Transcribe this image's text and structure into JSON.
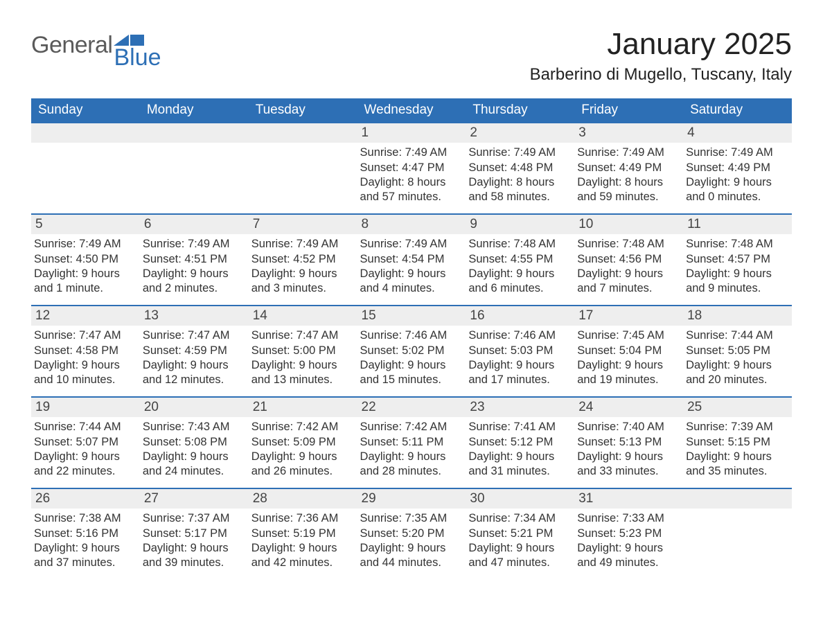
{
  "brand": {
    "general": "General",
    "blue": "Blue",
    "flag_color": "#2d6fb5"
  },
  "title": "January 2025",
  "location": "Barberino di Mugello, Tuscany, Italy",
  "colors": {
    "header_bg": "#2d6fb5",
    "header_text": "#ffffff",
    "day_bar_bg": "#eeeeee",
    "day_bar_border": "#2d6fb5",
    "body_text": "#333333",
    "page_bg": "#ffffff"
  },
  "day_headers": [
    "Sunday",
    "Monday",
    "Tuesday",
    "Wednesday",
    "Thursday",
    "Friday",
    "Saturday"
  ],
  "weeks": [
    [
      null,
      null,
      null,
      {
        "n": "1",
        "sunrise": "Sunrise: 7:49 AM",
        "sunset": "Sunset: 4:47 PM",
        "daylight": "Daylight: 8 hours and 57 minutes."
      },
      {
        "n": "2",
        "sunrise": "Sunrise: 7:49 AM",
        "sunset": "Sunset: 4:48 PM",
        "daylight": "Daylight: 8 hours and 58 minutes."
      },
      {
        "n": "3",
        "sunrise": "Sunrise: 7:49 AM",
        "sunset": "Sunset: 4:49 PM",
        "daylight": "Daylight: 8 hours and 59 minutes."
      },
      {
        "n": "4",
        "sunrise": "Sunrise: 7:49 AM",
        "sunset": "Sunset: 4:49 PM",
        "daylight": "Daylight: 9 hours and 0 minutes."
      }
    ],
    [
      {
        "n": "5",
        "sunrise": "Sunrise: 7:49 AM",
        "sunset": "Sunset: 4:50 PM",
        "daylight": "Daylight: 9 hours and 1 minute."
      },
      {
        "n": "6",
        "sunrise": "Sunrise: 7:49 AM",
        "sunset": "Sunset: 4:51 PM",
        "daylight": "Daylight: 9 hours and 2 minutes."
      },
      {
        "n": "7",
        "sunrise": "Sunrise: 7:49 AM",
        "sunset": "Sunset: 4:52 PM",
        "daylight": "Daylight: 9 hours and 3 minutes."
      },
      {
        "n": "8",
        "sunrise": "Sunrise: 7:49 AM",
        "sunset": "Sunset: 4:54 PM",
        "daylight": "Daylight: 9 hours and 4 minutes."
      },
      {
        "n": "9",
        "sunrise": "Sunrise: 7:48 AM",
        "sunset": "Sunset: 4:55 PM",
        "daylight": "Daylight: 9 hours and 6 minutes."
      },
      {
        "n": "10",
        "sunrise": "Sunrise: 7:48 AM",
        "sunset": "Sunset: 4:56 PM",
        "daylight": "Daylight: 9 hours and 7 minutes."
      },
      {
        "n": "11",
        "sunrise": "Sunrise: 7:48 AM",
        "sunset": "Sunset: 4:57 PM",
        "daylight": "Daylight: 9 hours and 9 minutes."
      }
    ],
    [
      {
        "n": "12",
        "sunrise": "Sunrise: 7:47 AM",
        "sunset": "Sunset: 4:58 PM",
        "daylight": "Daylight: 9 hours and 10 minutes."
      },
      {
        "n": "13",
        "sunrise": "Sunrise: 7:47 AM",
        "sunset": "Sunset: 4:59 PM",
        "daylight": "Daylight: 9 hours and 12 minutes."
      },
      {
        "n": "14",
        "sunrise": "Sunrise: 7:47 AM",
        "sunset": "Sunset: 5:00 PM",
        "daylight": "Daylight: 9 hours and 13 minutes."
      },
      {
        "n": "15",
        "sunrise": "Sunrise: 7:46 AM",
        "sunset": "Sunset: 5:02 PM",
        "daylight": "Daylight: 9 hours and 15 minutes."
      },
      {
        "n": "16",
        "sunrise": "Sunrise: 7:46 AM",
        "sunset": "Sunset: 5:03 PM",
        "daylight": "Daylight: 9 hours and 17 minutes."
      },
      {
        "n": "17",
        "sunrise": "Sunrise: 7:45 AM",
        "sunset": "Sunset: 5:04 PM",
        "daylight": "Daylight: 9 hours and 19 minutes."
      },
      {
        "n": "18",
        "sunrise": "Sunrise: 7:44 AM",
        "sunset": "Sunset: 5:05 PM",
        "daylight": "Daylight: 9 hours and 20 minutes."
      }
    ],
    [
      {
        "n": "19",
        "sunrise": "Sunrise: 7:44 AM",
        "sunset": "Sunset: 5:07 PM",
        "daylight": "Daylight: 9 hours and 22 minutes."
      },
      {
        "n": "20",
        "sunrise": "Sunrise: 7:43 AM",
        "sunset": "Sunset: 5:08 PM",
        "daylight": "Daylight: 9 hours and 24 minutes."
      },
      {
        "n": "21",
        "sunrise": "Sunrise: 7:42 AM",
        "sunset": "Sunset: 5:09 PM",
        "daylight": "Daylight: 9 hours and 26 minutes."
      },
      {
        "n": "22",
        "sunrise": "Sunrise: 7:42 AM",
        "sunset": "Sunset: 5:11 PM",
        "daylight": "Daylight: 9 hours and 28 minutes."
      },
      {
        "n": "23",
        "sunrise": "Sunrise: 7:41 AM",
        "sunset": "Sunset: 5:12 PM",
        "daylight": "Daylight: 9 hours and 31 minutes."
      },
      {
        "n": "24",
        "sunrise": "Sunrise: 7:40 AM",
        "sunset": "Sunset: 5:13 PM",
        "daylight": "Daylight: 9 hours and 33 minutes."
      },
      {
        "n": "25",
        "sunrise": "Sunrise: 7:39 AM",
        "sunset": "Sunset: 5:15 PM",
        "daylight": "Daylight: 9 hours and 35 minutes."
      }
    ],
    [
      {
        "n": "26",
        "sunrise": "Sunrise: 7:38 AM",
        "sunset": "Sunset: 5:16 PM",
        "daylight": "Daylight: 9 hours and 37 minutes."
      },
      {
        "n": "27",
        "sunrise": "Sunrise: 7:37 AM",
        "sunset": "Sunset: 5:17 PM",
        "daylight": "Daylight: 9 hours and 39 minutes."
      },
      {
        "n": "28",
        "sunrise": "Sunrise: 7:36 AM",
        "sunset": "Sunset: 5:19 PM",
        "daylight": "Daylight: 9 hours and 42 minutes."
      },
      {
        "n": "29",
        "sunrise": "Sunrise: 7:35 AM",
        "sunset": "Sunset: 5:20 PM",
        "daylight": "Daylight: 9 hours and 44 minutes."
      },
      {
        "n": "30",
        "sunrise": "Sunrise: 7:34 AM",
        "sunset": "Sunset: 5:21 PM",
        "daylight": "Daylight: 9 hours and 47 minutes."
      },
      {
        "n": "31",
        "sunrise": "Sunrise: 7:33 AM",
        "sunset": "Sunset: 5:23 PM",
        "daylight": "Daylight: 9 hours and 49 minutes."
      },
      null
    ]
  ]
}
